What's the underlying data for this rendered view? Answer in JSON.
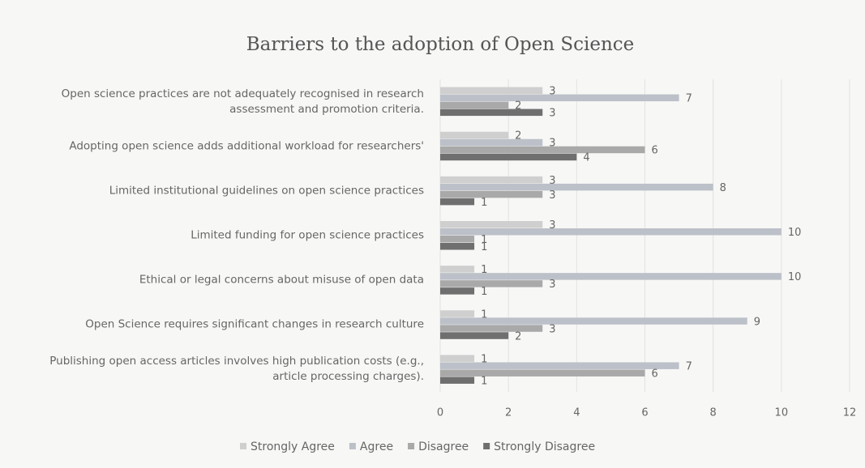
{
  "chart_data": {
    "type": "barh",
    "title": "Barriers to the adoption of Open Science",
    "categories": [
      "Open science practices are not adequately recognised in research assessment and promotion criteria.",
      "Adopting open science adds additional workload for researchers'",
      "Limited institutional guidelines on open science practices",
      "Limited funding for open science practices",
      "Ethical or legal concerns about misuse of open data",
      "Open Science requires significant changes in research culture",
      "Publishing open access articles involves high publication costs (e.g., article processing charges)."
    ],
    "series": [
      {
        "name": "Strongly Agree",
        "color": "#cfcfcf",
        "values": [
          3,
          2,
          3,
          3,
          1,
          1,
          1
        ]
      },
      {
        "name": "Agree",
        "color": "#bcc0c8",
        "values": [
          7,
          3,
          8,
          10,
          10,
          9,
          7
        ]
      },
      {
        "name": "Disagree",
        "color": "#a9a9a9",
        "values": [
          2,
          6,
          3,
          1,
          3,
          3,
          6
        ]
      },
      {
        "name": "Strongly Disagree",
        "color": "#6f6f6f",
        "values": [
          3,
          4,
          1,
          1,
          1,
          2,
          1
        ]
      }
    ],
    "xlim": [
      0,
      12
    ],
    "xticks": [
      0,
      2,
      4,
      6,
      8,
      10,
      12
    ],
    "grid": true,
    "legend": "bottom"
  }
}
